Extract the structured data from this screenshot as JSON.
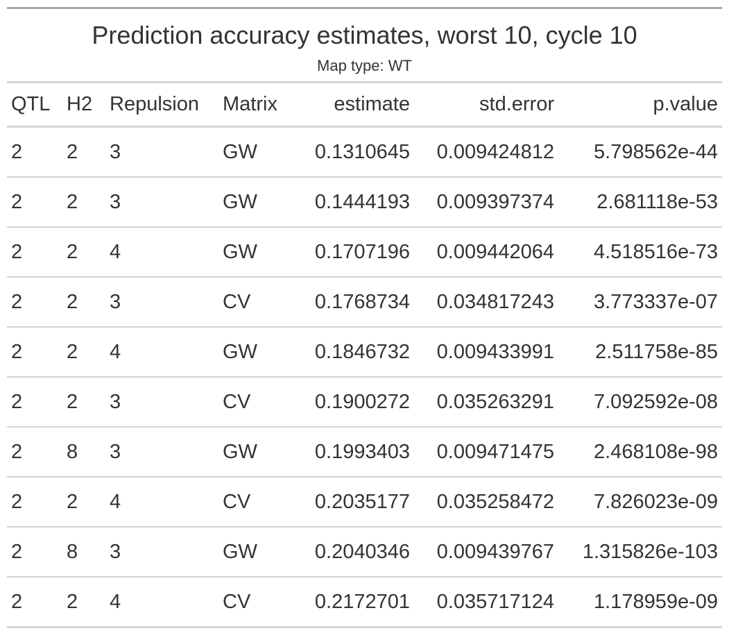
{
  "table": {
    "title": "Prediction accuracy estimates, worst 10, cycle 10",
    "subtitle": "Map type: WT",
    "columns": [
      "QTL",
      "H2",
      "Repulsion",
      "Matrix",
      "estimate",
      "std.error",
      "p.value"
    ],
    "rows": [
      [
        "2",
        "2",
        "3",
        "GW",
        "0.1310645",
        "0.009424812",
        "5.798562e-44"
      ],
      [
        "2",
        "2",
        "3",
        "GW",
        "0.1444193",
        "0.009397374",
        "2.681118e-53"
      ],
      [
        "2",
        "2",
        "4",
        "GW",
        "0.1707196",
        "0.009442064",
        "4.518516e-73"
      ],
      [
        "2",
        "2",
        "3",
        "CV",
        "0.1768734",
        "0.034817243",
        "3.773337e-07"
      ],
      [
        "2",
        "2",
        "4",
        "GW",
        "0.1846732",
        "0.009433991",
        "2.511758e-85"
      ],
      [
        "2",
        "2",
        "3",
        "CV",
        "0.1900272",
        "0.035263291",
        "7.092592e-08"
      ],
      [
        "2",
        "8",
        "3",
        "GW",
        "0.1993403",
        "0.009471475",
        "2.468108e-98"
      ],
      [
        "2",
        "2",
        "4",
        "CV",
        "0.2035177",
        "0.035258472",
        "7.826023e-09"
      ],
      [
        "2",
        "8",
        "3",
        "GW",
        "0.2040346",
        "0.009439767",
        "1.315826e-103"
      ],
      [
        "2",
        "2",
        "4",
        "CV",
        "0.2172701",
        "0.035717124",
        "1.178959e-09"
      ]
    ]
  }
}
